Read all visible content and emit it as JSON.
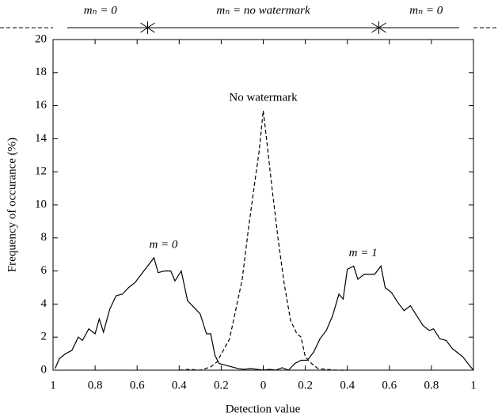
{
  "chart_data": {
    "type": "line",
    "xlabel": "Detection value",
    "ylabel": "Frequency of occurance (%)",
    "xlim": [
      -1,
      1
    ],
    "xticks": [
      {
        "value": -1,
        "label": "1"
      },
      {
        "value": -0.8,
        "label": "0.8"
      },
      {
        "value": -0.6,
        "label": "0.6"
      },
      {
        "value": -0.4,
        "label": "0.4"
      },
      {
        "value": -0.2,
        "label": "0.2"
      },
      0,
      0.2,
      0.4,
      0.6,
      0.8,
      1
    ],
    "ylim": [
      0,
      20
    ],
    "yticks": [
      0,
      2,
      4,
      6,
      8,
      10,
      12,
      14,
      16,
      18,
      20
    ],
    "top_labels": [
      "mₙ = 0",
      "mₙ = no watermark",
      "mₙ = 0"
    ],
    "region_bounds": [
      -0.55,
      0.55
    ],
    "series": [
      {
        "name": "m = 0",
        "color": "#000000",
        "dashed": false,
        "x": [
          -0.99,
          -0.97,
          -0.94,
          -0.91,
          -0.88,
          -0.86,
          -0.83,
          -0.8,
          -0.78,
          -0.76,
          -0.73,
          -0.7,
          -0.67,
          -0.64,
          -0.61,
          -0.58,
          -0.55,
          -0.52,
          -0.5,
          -0.47,
          -0.44,
          -0.42,
          -0.39,
          -0.36,
          -0.33,
          -0.3,
          -0.27,
          -0.25,
          -0.23,
          -0.21,
          -0.18,
          -0.15,
          -0.12,
          -0.09,
          -0.06,
          -0.03,
          0,
          0.03,
          0.06,
          0.09,
          0.12
        ],
        "values": [
          0.1,
          0.7,
          1.0,
          1.2,
          2.0,
          1.8,
          2.5,
          2.2,
          3.1,
          2.3,
          3.7,
          4.5,
          4.6,
          5.0,
          5.3,
          5.8,
          6.3,
          6.8,
          5.9,
          6.0,
          6.0,
          5.4,
          6.0,
          4.2,
          3.8,
          3.4,
          2.2,
          2.2,
          0.9,
          0.4,
          0.3,
          0.2,
          0.1,
          0.05,
          0.1,
          0.05,
          0.0,
          0.05,
          0.0,
          0.15,
          0.0
        ]
      },
      {
        "name": "m = 1",
        "color": "#000000",
        "dashed": false,
        "x": [
          0.12,
          0.15,
          0.18,
          0.21,
          0.24,
          0.27,
          0.3,
          0.33,
          0.36,
          0.38,
          0.4,
          0.43,
          0.45,
          0.48,
          0.51,
          0.53,
          0.56,
          0.58,
          0.61,
          0.64,
          0.67,
          0.7,
          0.73,
          0.76,
          0.79,
          0.81,
          0.84,
          0.87,
          0.9,
          0.92,
          0.95,
          0.98,
          1.0
        ],
        "values": [
          0.0,
          0.4,
          0.6,
          0.6,
          1.1,
          1.9,
          2.4,
          3.3,
          4.6,
          4.3,
          6.1,
          6.3,
          5.5,
          5.8,
          5.8,
          5.8,
          6.3,
          5.0,
          4.7,
          4.1,
          3.6,
          3.9,
          3.3,
          2.7,
          2.4,
          2.5,
          1.9,
          1.8,
          1.3,
          1.1,
          0.8,
          0.3,
          0.0
        ]
      },
      {
        "name": "No watermark",
        "color": "#000000",
        "dashed": true,
        "x": [
          -0.4,
          -0.35,
          -0.3,
          -0.25,
          -0.22,
          -0.19,
          -0.16,
          -0.13,
          -0.1,
          -0.07,
          -0.04,
          -0.02,
          0,
          0.02,
          0.04,
          0.07,
          0.1,
          0.13,
          0.16,
          0.18,
          0.2,
          0.23,
          0.26,
          0.3,
          0.35,
          0.4
        ],
        "values": [
          0.0,
          0.05,
          0.0,
          0.2,
          0.5,
          1.2,
          1.9,
          3.7,
          5.5,
          8.6,
          11.4,
          13.2,
          15.7,
          13.5,
          11.2,
          8.0,
          5.2,
          3.0,
          2.2,
          2.0,
          0.8,
          0.4,
          0.1,
          0.05,
          0.0,
          0.0
        ]
      }
    ]
  }
}
